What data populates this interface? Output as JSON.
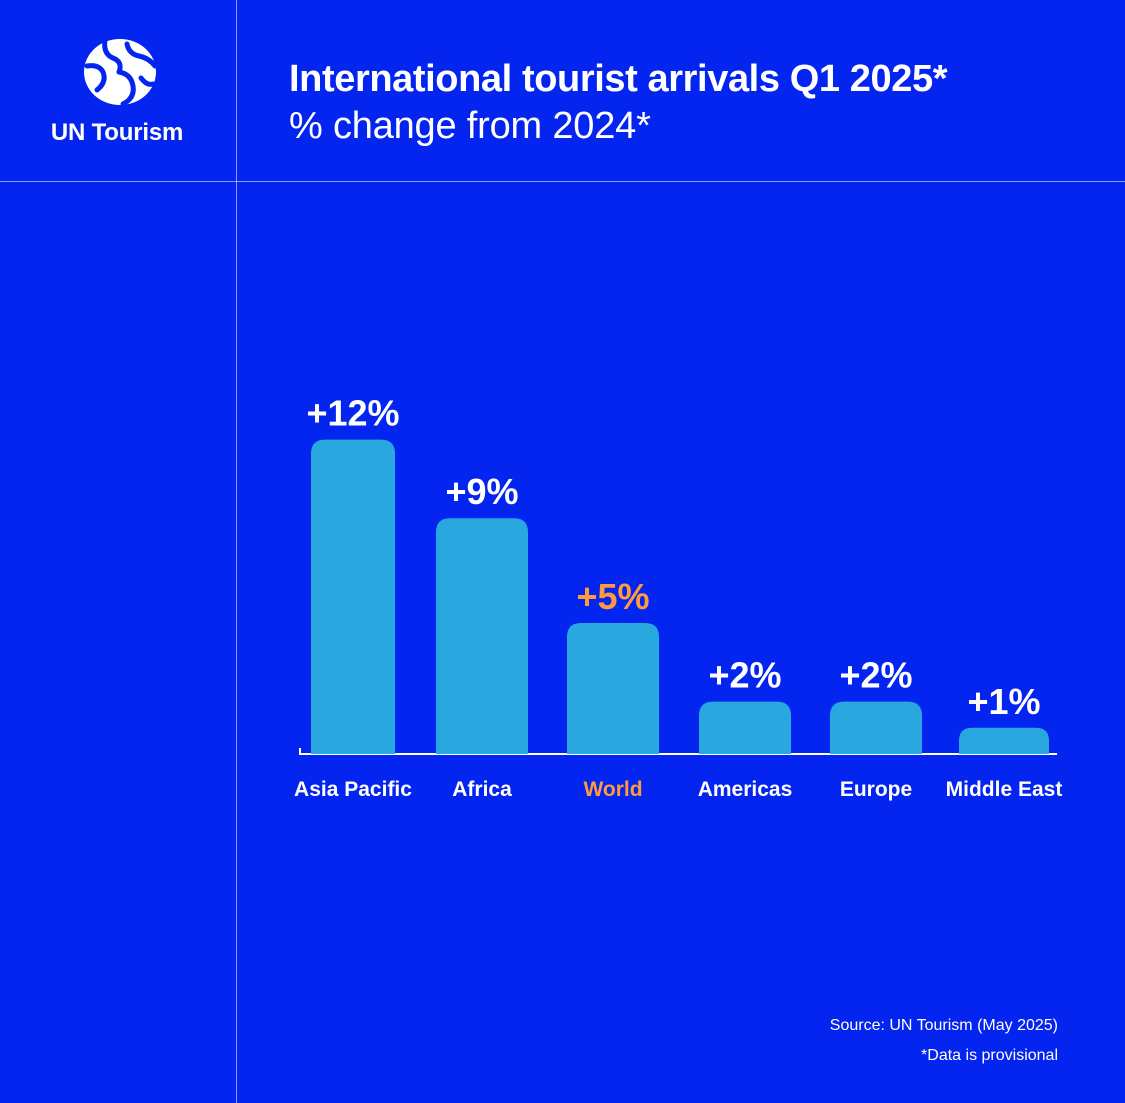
{
  "brand": {
    "name": "UN Tourism",
    "logo_icon": "un-tourism-globe-icon"
  },
  "header": {
    "title": "International tourist arrivals Q1 2025*",
    "subtitle": "% change from 2024*"
  },
  "colors": {
    "background": "#0424f0",
    "bar": "#29a8e0",
    "text": "#ffffff",
    "highlight": "#ff9b3d",
    "divider": "#8f9cf7"
  },
  "chart_data": {
    "type": "bar",
    "title": "International tourist arrivals Q1 2025*",
    "subtitle": "% change from 2024*",
    "xlabel": "",
    "ylabel": "",
    "categories": [
      "Asia Pacific",
      "Africa",
      "World",
      "Americas",
      "Europe",
      "Middle East"
    ],
    "values": [
      12,
      9,
      5,
      2,
      2,
      1
    ],
    "labels": [
      "+12%",
      "+9%",
      "+5%",
      "+2%",
      "+2%",
      "+1%"
    ],
    "highlight_category": "World",
    "ylim": [
      0,
      12
    ],
    "grid": false,
    "legend": "none"
  },
  "footer": {
    "source": "Source: UN Tourism (May 2025)",
    "note": "*Data is provisional"
  }
}
